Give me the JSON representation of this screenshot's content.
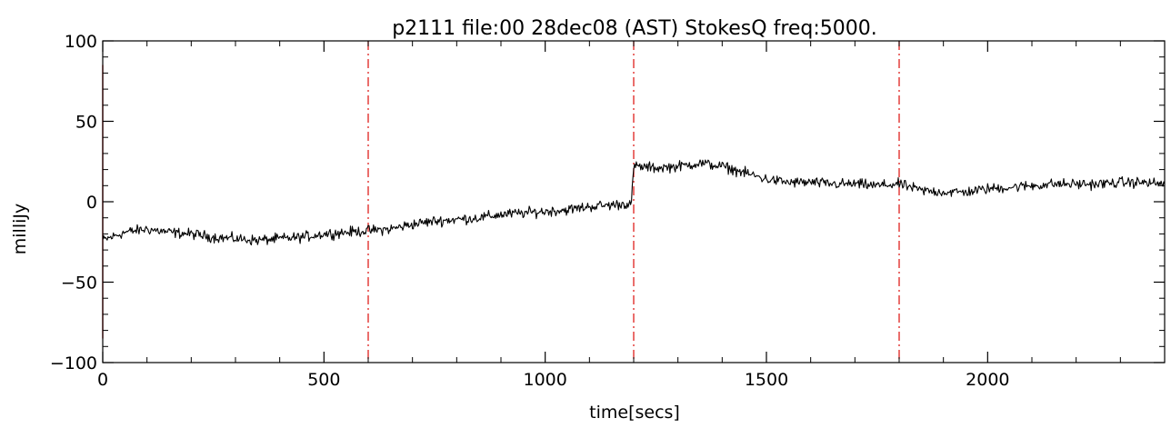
{
  "chart_data": {
    "type": "line",
    "title": "p2111 file:00 28dec08 (AST) StokesQ freq:5000.",
    "xlabel": "time[secs]",
    "ylabel": "milliJy",
    "xlim": [
      0,
      2400
    ],
    "ylim": [
      -100,
      100
    ],
    "xticks": [
      0,
      500,
      1000,
      1500,
      2000
    ],
    "xtick_labels": [
      "0",
      "500",
      "1000",
      "1500",
      "2000"
    ],
    "yticks": [
      -100,
      -50,
      0,
      50,
      100
    ],
    "ytick_labels": [
      "−100",
      "−50",
      "0",
      "50",
      "100"
    ],
    "grid": false,
    "line_color": "#000000",
    "marker_color": "#e0302e",
    "vertical_markers": [
      600,
      1200,
      1800
    ],
    "series": [
      {
        "x": [
          0,
          50,
          100,
          150,
          200,
          250,
          300,
          350,
          400,
          450,
          500,
          550,
          600,
          650,
          700,
          750,
          800,
          850,
          900,
          950,
          1000,
          1050,
          1100,
          1150,
          1195,
          1200,
          1250,
          1300,
          1350,
          1400,
          1450,
          1500,
          1550,
          1600,
          1650,
          1700,
          1750,
          1800,
          1850,
          1900,
          1950,
          2000,
          2050,
          2100,
          2150,
          2200,
          2250,
          2300,
          2350,
          2400
        ],
        "y": [
          -24,
          -19,
          -17,
          -19,
          -20,
          -22,
          -23,
          -24,
          -23,
          -22,
          -20,
          -19,
          -18,
          -17,
          -14,
          -12,
          -11,
          -10,
          -8,
          -7,
          -6,
          -5,
          -3,
          -2,
          -1,
          22,
          21,
          22,
          24,
          22,
          18,
          14,
          12,
          12,
          11,
          11,
          10,
          11,
          7,
          6,
          6,
          8,
          9,
          10,
          11,
          11,
          11,
          12,
          12,
          11
        ]
      }
    ]
  }
}
